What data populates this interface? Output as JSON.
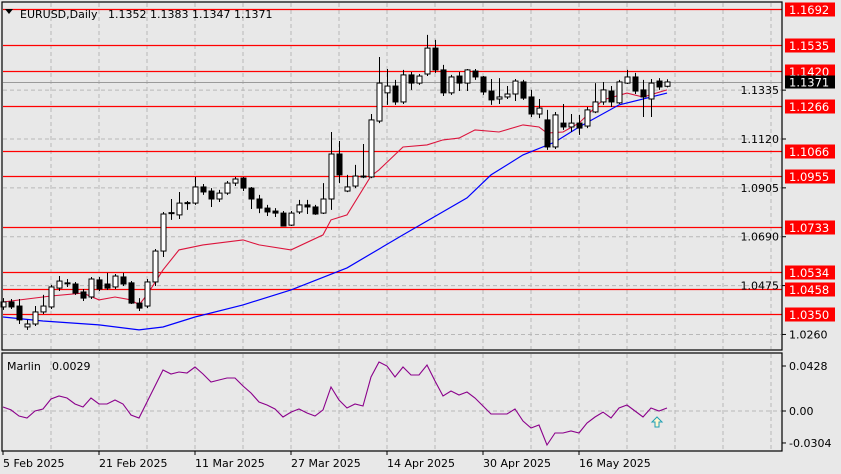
{
  "header": {
    "symbol_label": "EURUSD,Daily",
    "ohlc_label": "1.1352 1.1383 1.1347 1.1371",
    "menu_icon": "triangle-down-icon"
  },
  "colors": {
    "background": "#e8e8e8",
    "level_line": "#ff0000",
    "fast_ma": "#dc143c",
    "slow_ma": "#0000ff",
    "indicator": "#8b008b",
    "bull_body": "#ffffff",
    "bear_body": "#000000",
    "current_price_box": "#000000",
    "signal_arrow": "#1e9fb4"
  },
  "chart_data": [
    {
      "type": "candlestick",
      "symbol": "EURUSD",
      "timeframe": "Daily",
      "ylim": [
        1.0192,
        1.1732
      ],
      "price_ticks": [
        "1.1335",
        "1.1120",
        "1.0905",
        "1.0690",
        "1.0475",
        "1.0260"
      ],
      "current_price": "1.1371",
      "levels": [
        "1.1692",
        "1.1535",
        "1.1420",
        "1.1266",
        "1.1066",
        "1.0955",
        "1.0733",
        "1.0534",
        "1.0458",
        "1.0350"
      ],
      "date_ticks": [
        {
          "label": "5 Feb 2025",
          "index": 0
        },
        {
          "label": "21 Feb 2025",
          "index": 12
        },
        {
          "label": "11 Mar 2025",
          "index": 24
        },
        {
          "label": "27 Mar 2025",
          "index": 36
        },
        {
          "label": "14 Apr 2025",
          "index": 48
        },
        {
          "label": "30 Apr 2025",
          "index": 60
        },
        {
          "label": "16 May 2025",
          "index": 72
        }
      ],
      "candles_ohlc": [
        [
          1.0381,
          1.042,
          1.0368,
          1.0403
        ],
        [
          1.0403,
          1.0416,
          1.0372,
          1.0381
        ],
        [
          1.0385,
          1.0416,
          1.0306,
          1.0324
        ],
        [
          1.0293,
          1.0324,
          1.028,
          1.0306
        ],
        [
          1.0306,
          1.0385,
          1.0297,
          1.0359
        ],
        [
          1.0359,
          1.0434,
          1.035,
          1.0385
        ],
        [
          1.0381,
          1.0478,
          1.0372,
          1.0469
        ],
        [
          1.0464,
          1.0517,
          1.0451,
          1.0495
        ],
        [
          1.0487,
          1.0504,
          1.0469,
          1.0486
        ],
        [
          1.0482,
          1.0491,
          1.0434,
          1.0442
        ],
        [
          1.0447,
          1.046,
          1.0407,
          1.042
        ],
        [
          1.0425,
          1.0513,
          1.0416,
          1.0504
        ],
        [
          1.05,
          1.0513,
          1.0451,
          1.046
        ],
        [
          1.0482,
          1.0531,
          1.0456,
          1.0464
        ],
        [
          1.0469,
          1.0526,
          1.046,
          1.0517
        ],
        [
          1.0513,
          1.0531,
          1.0473,
          1.0482
        ],
        [
          1.0487,
          1.0495,
          1.0394,
          1.0398
        ],
        [
          1.0398,
          1.042,
          1.0363,
          1.0376
        ],
        [
          1.0385,
          1.0504,
          1.0376,
          1.0491
        ],
        [
          1.0491,
          1.0636,
          1.0473,
          1.0627
        ],
        [
          1.0627,
          1.0799,
          1.0601,
          1.079
        ],
        [
          1.0794,
          1.0856,
          1.0764,
          1.0796
        ],
        [
          1.0786,
          1.0887,
          1.0768,
          1.0838
        ],
        [
          1.0838,
          1.0847,
          1.0808,
          1.084
        ],
        [
          1.0838,
          1.0953,
          1.083,
          1.0909
        ],
        [
          1.0909,
          1.0922,
          1.0874,
          1.0887
        ],
        [
          1.0891,
          1.0904,
          1.0821,
          1.0856
        ],
        [
          1.0856,
          1.0896,
          1.0843,
          1.0882
        ],
        [
          1.0882,
          1.0935,
          1.0874,
          1.0926
        ],
        [
          1.0926,
          1.0953,
          1.0913,
          1.0944
        ],
        [
          1.0948,
          1.0953,
          1.0891,
          1.0904
        ],
        [
          1.0904,
          1.0909,
          1.0812,
          1.0856
        ],
        [
          1.0856,
          1.0874,
          1.0794,
          1.0816
        ],
        [
          1.0816,
          1.083,
          1.0781,
          1.0799
        ],
        [
          1.0803,
          1.0816,
          1.0777,
          1.0794
        ],
        [
          1.0794,
          1.0803,
          1.0737,
          1.0737
        ],
        [
          1.0741,
          1.0803,
          1.0737,
          1.0794
        ],
        [
          1.0799,
          1.0852,
          1.079,
          1.083
        ],
        [
          1.083,
          1.0852,
          1.079,
          1.0821
        ],
        [
          1.0821,
          1.083,
          1.0786,
          1.079
        ],
        [
          1.0794,
          1.0926,
          1.079,
          1.0856
        ],
        [
          1.0856,
          1.1151,
          1.0808,
          1.1054
        ],
        [
          1.1054,
          1.1111,
          1.0926,
          1.0962
        ],
        [
          1.0891,
          1.0962,
          1.0886,
          1.0909
        ],
        [
          1.0913,
          1.1006,
          1.0904,
          1.0957
        ],
        [
          1.0957,
          1.1098,
          1.0948,
          1.0955
        ],
        [
          1.0953,
          1.123,
          1.0948,
          1.1204
        ],
        [
          1.1199,
          1.1481,
          1.119,
          1.1366
        ],
        [
          1.1323,
          1.1428,
          1.127,
          1.1353
        ],
        [
          1.1353,
          1.138,
          1.127,
          1.1283
        ],
        [
          1.1283,
          1.1424,
          1.1274,
          1.1402
        ],
        [
          1.1402,
          1.1415,
          1.1336,
          1.1366
        ],
        [
          1.1366,
          1.1406,
          1.1358,
          1.1397
        ],
        [
          1.1406,
          1.1578,
          1.1397,
          1.152
        ],
        [
          1.152,
          1.1556,
          1.1411,
          1.1424
        ],
        [
          1.1424,
          1.1446,
          1.1309,
          1.1323
        ],
        [
          1.1323,
          1.1402,
          1.1314,
          1.1393
        ],
        [
          1.1397,
          1.1415,
          1.1331,
          1.1366
        ],
        [
          1.1366,
          1.1428,
          1.1331,
          1.1424
        ],
        [
          1.1419,
          1.1428,
          1.138,
          1.1393
        ],
        [
          1.1393,
          1.1397,
          1.1314,
          1.1327
        ],
        [
          1.1331,
          1.1384,
          1.127,
          1.1292
        ],
        [
          1.1296,
          1.1388,
          1.1274,
          1.1305
        ],
        [
          1.1305,
          1.1353,
          1.1296,
          1.1318
        ],
        [
          1.1318,
          1.1384,
          1.1287,
          1.1375
        ],
        [
          1.1371,
          1.138,
          1.1292,
          1.13
        ],
        [
          1.1305,
          1.1336,
          1.1217,
          1.123
        ],
        [
          1.123,
          1.1296,
          1.1212,
          1.1256
        ],
        [
          1.1204,
          1.1248,
          1.1072,
          1.1085
        ],
        [
          1.1085,
          1.1239,
          1.1076,
          1.1226
        ],
        [
          1.119,
          1.1274,
          1.116,
          1.1173
        ],
        [
          1.1173,
          1.123,
          1.1151,
          1.119
        ],
        [
          1.119,
          1.1226,
          1.1138,
          1.1168
        ],
        [
          1.1177,
          1.1261,
          1.1168,
          1.1248
        ],
        [
          1.1239,
          1.1366,
          1.1234,
          1.1283
        ],
        [
          1.1283,
          1.1371,
          1.127,
          1.1336
        ],
        [
          1.1331,
          1.1353,
          1.1261,
          1.1283
        ],
        [
          1.1279,
          1.138,
          1.1274,
          1.1371
        ],
        [
          1.1366,
          1.1424,
          1.1362,
          1.1393
        ],
        [
          1.1393,
          1.1411,
          1.1318,
          1.1331
        ],
        [
          1.1336,
          1.138,
          1.1217,
          1.1305
        ],
        [
          1.1296,
          1.1384,
          1.1217,
          1.1366
        ],
        [
          1.1375,
          1.1388,
          1.1336,
          1.1349
        ],
        [
          1.1352,
          1.1383,
          1.1347,
          1.1371
        ]
      ],
      "fast_ma": [
        [
          0,
          1.0403
        ],
        [
          6,
          1.0429
        ],
        [
          10,
          1.0442
        ],
        [
          12,
          1.0412
        ],
        [
          14,
          1.0425
        ],
        [
          16,
          1.0412
        ],
        [
          17,
          1.039
        ],
        [
          18,
          1.0434
        ],
        [
          20,
          1.0544
        ],
        [
          22,
          1.0632
        ],
        [
          25,
          1.0654
        ],
        [
          30,
          1.0676
        ],
        [
          32,
          1.0654
        ],
        [
          36,
          1.0632
        ],
        [
          40,
          1.0698
        ],
        [
          41,
          1.0764
        ],
        [
          43,
          1.0786
        ],
        [
          46,
          1.0957
        ],
        [
          47,
          1.0984
        ],
        [
          50,
          1.1085
        ],
        [
          53,
          1.1094
        ],
        [
          55,
          1.1116
        ],
        [
          57,
          1.1124
        ],
        [
          59,
          1.116
        ],
        [
          62,
          1.1151
        ],
        [
          65,
          1.1182
        ],
        [
          67,
          1.1173
        ],
        [
          68,
          1.1146
        ],
        [
          70,
          1.1151
        ],
        [
          72,
          1.119
        ],
        [
          75,
          1.1292
        ],
        [
          78,
          1.1322
        ],
        [
          80,
          1.1305
        ],
        [
          83,
          1.1336
        ]
      ],
      "slow_ma": [
        [
          0,
          1.0337
        ],
        [
          5,
          1.0319
        ],
        [
          12,
          1.0302
        ],
        [
          17,
          1.028
        ],
        [
          20,
          1.0293
        ],
        [
          24,
          1.0337
        ],
        [
          30,
          1.039
        ],
        [
          36,
          1.0456
        ],
        [
          43,
          1.0553
        ],
        [
          50,
          1.0698
        ],
        [
          58,
          1.0861
        ],
        [
          61,
          1.0962
        ],
        [
          65,
          1.105
        ],
        [
          69,
          1.1107
        ],
        [
          72,
          1.1173
        ],
        [
          77,
          1.127
        ],
        [
          83,
          1.1322
        ]
      ]
    },
    {
      "type": "line",
      "name": "Marlin",
      "value_label": "0.0029",
      "ticks": [
        "0.0428",
        "0.00",
        "-0.0304"
      ],
      "ylim": [
        -0.0399,
        0.0523
      ],
      "values": [
        0.0038,
        0.001,
        -0.0048,
        -0.0067,
        0,
        0.0019,
        0.0114,
        0.0143,
        0.0124,
        0.0067,
        0.0038,
        0.0124,
        0.0067,
        0.0067,
        0.0105,
        0.0067,
        -0.0038,
        -0.0067,
        0.0086,
        0.0238,
        0.039,
        0.0352,
        0.0371,
        0.0361,
        0.0418,
        0.0352,
        0.0276,
        0.0295,
        0.0314,
        0.0314,
        0.0238,
        0.0171,
        0.0086,
        0.0057,
        0.0019,
        -0.0057,
        -0.001,
        0.0019,
        -0.0019,
        -0.0048,
        0.001,
        0.0228,
        0.0105,
        0.0029,
        0.0067,
        0.0048,
        0.0323,
        0.0466,
        0.0428,
        0.0323,
        0.0418,
        0.0342,
        0.0342,
        0.0437,
        0.0285,
        0.0143,
        0.019,
        0.0152,
        0.0181,
        0.0124,
        0.0048,
        -0.0029,
        -0.0029,
        -0.0029,
        0.0019,
        -0.0095,
        -0.0162,
        -0.0133,
        -0.0323,
        -0.0209,
        -0.0209,
        -0.019,
        -0.0209,
        -0.0114,
        -0.0057,
        -0.001,
        -0.0067,
        0.0029,
        0.0057,
        0,
        -0.0057,
        0.0029,
        0,
        0.0029
      ],
      "signal": {
        "type": "up-arrow",
        "index": 82
      }
    }
  ]
}
